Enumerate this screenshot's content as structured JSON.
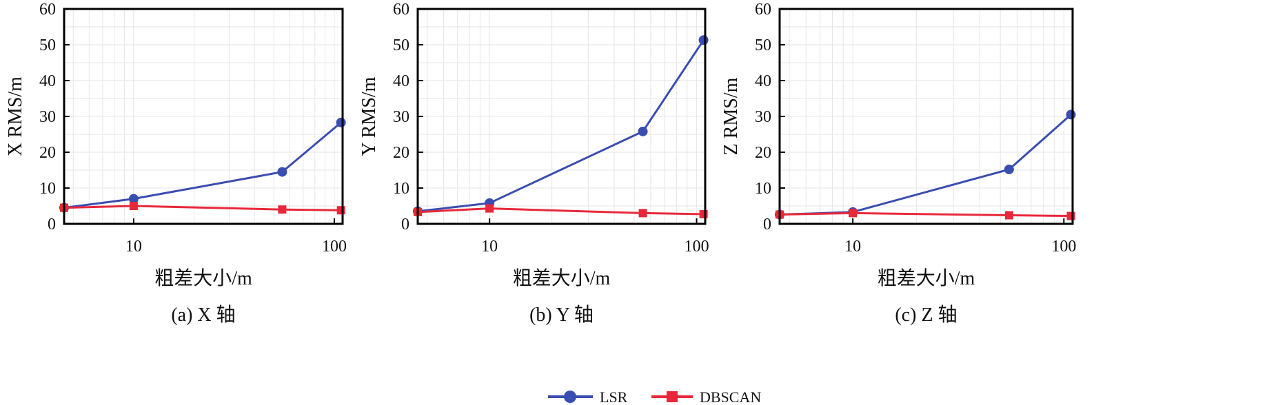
{
  "chart_data": [
    {
      "type": "line",
      "caption": "(a) X 轴",
      "ylabel": "X RMS/m",
      "xlabel": "粗差大小/m",
      "xscale": "log",
      "xlim": [
        4.5,
        110
      ],
      "ylim": [
        0,
        60
      ],
      "xticks": [
        10,
        100
      ],
      "yticks": [
        0,
        10,
        20,
        30,
        40,
        50,
        60
      ],
      "grid": true,
      "series": [
        {
          "name": "LSR",
          "color": "#3a4db0",
          "marker": "circle",
          "x": [
            4.5,
            10,
            55,
            108
          ],
          "y": [
            4.5,
            7.0,
            14.5,
            28.3
          ]
        },
        {
          "name": "DBSCAN",
          "color": "#e8283a",
          "marker": "square",
          "x": [
            4.5,
            10,
            55,
            108
          ],
          "y": [
            4.5,
            5.0,
            4.0,
            3.8
          ]
        }
      ]
    },
    {
      "type": "line",
      "caption": "(b) Y 轴",
      "ylabel": "Y RMS/m",
      "xlabel": "粗差大小/m",
      "xscale": "log",
      "xlim": [
        4.5,
        110
      ],
      "ylim": [
        0,
        60
      ],
      "xticks": [
        10,
        100
      ],
      "yticks": [
        0,
        10,
        20,
        30,
        40,
        50,
        60
      ],
      "grid": true,
      "series": [
        {
          "name": "LSR",
          "color": "#3a4db0",
          "marker": "circle",
          "x": [
            4.5,
            10,
            55,
            108
          ],
          "y": [
            3.5,
            5.8,
            25.8,
            51.3
          ]
        },
        {
          "name": "DBSCAN",
          "color": "#e8283a",
          "marker": "square",
          "x": [
            4.5,
            10,
            55,
            108
          ],
          "y": [
            3.3,
            4.3,
            3.0,
            2.7
          ]
        }
      ]
    },
    {
      "type": "line",
      "caption": "(c) Z 轴",
      "ylabel": "Z RMS/m",
      "xlabel": "粗差大小/m",
      "xscale": "log",
      "xlim": [
        4.5,
        110
      ],
      "ylim": [
        0,
        60
      ],
      "xticks": [
        10,
        100
      ],
      "yticks": [
        0,
        10,
        20,
        30,
        40,
        50,
        60
      ],
      "grid": true,
      "series": [
        {
          "name": "LSR",
          "color": "#3a4db0",
          "marker": "circle",
          "x": [
            4.5,
            10,
            55,
            108
          ],
          "y": [
            2.6,
            3.3,
            15.2,
            30.5
          ]
        },
        {
          "name": "DBSCAN",
          "color": "#e8283a",
          "marker": "square",
          "x": [
            4.5,
            10,
            55,
            108
          ],
          "y": [
            2.6,
            3.0,
            2.4,
            2.2
          ]
        }
      ]
    }
  ],
  "legend": {
    "position": "bottom-center",
    "items": [
      {
        "label": "LSR",
        "color": "#3a4db0",
        "marker": "circle"
      },
      {
        "label": "DBSCAN",
        "color": "#e8283a",
        "marker": "square"
      }
    ]
  }
}
